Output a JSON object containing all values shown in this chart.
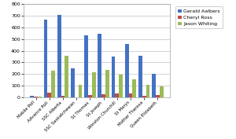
{
  "categories": [
    "Mobile Poll",
    "Advance Poll",
    "SSC Alberta",
    "SSC Saskatchewan",
    "St Thomas",
    "St Joseph",
    "Winston Churchill",
    "St Marys",
    "Mother Theresa",
    "Queen Elizabeth"
  ],
  "gerald_aalbers": [
    10,
    670,
    710,
    250,
    535,
    545,
    350,
    455,
    355,
    200
  ],
  "cheryl_ross": [
    5,
    40,
    10,
    0,
    20,
    25,
    35,
    30,
    15,
    20
  ],
  "jason_whiting": [
    5,
    230,
    355,
    110,
    215,
    235,
    195,
    155,
    110,
    95
  ],
  "colors": {
    "gerald": "#4472C4",
    "cheryl": "#BE4B48",
    "jason": "#9BBB59"
  },
  "legend_labels": [
    "Gerald Aalbers",
    "Cheryl Ross",
    "Jason Whiting"
  ],
  "ylim": [
    0,
    800
  ],
  "yticks": [
    0,
    100,
    200,
    300,
    400,
    500,
    600,
    700,
    800
  ],
  "background_color": "#FFFFFF",
  "grid_color": "#C0C0C0"
}
